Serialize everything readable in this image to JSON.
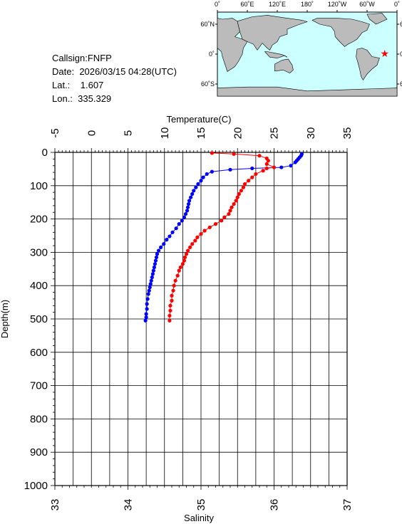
{
  "info": {
    "callsign_label": "Callsign:",
    "callsign": "FNFP",
    "date_label": "Date:",
    "date": "2026/03/15 04:28(UTC)",
    "lat_label": "Lat.:",
    "lat": "1.607",
    "lon_label": "Lon.:",
    "lon": "335.329"
  },
  "map": {
    "lon_labels": [
      "0˚",
      "60˚E",
      "120˚E",
      "180˚",
      "120˚W",
      "60˚W",
      "0˚"
    ],
    "lat_labels": [
      "60˚N",
      "0˚",
      "60˚S"
    ],
    "station": {
      "lon": 335.329,
      "lat": 1.607
    },
    "ocean_color": "#ccffff",
    "land_color": "#bbbbbb",
    "station_color": "#ff0000"
  },
  "chart_data": {
    "type": "line",
    "title": "",
    "y_axis": {
      "label": "Depth(m)",
      "range": [
        0,
        1000
      ],
      "ticks": [
        "0",
        "100",
        "200",
        "300",
        "400",
        "500",
        "600",
        "700",
        "800",
        "900",
        "1000"
      ],
      "inverted": true
    },
    "temperature_axis": {
      "label": "Temperature(C)",
      "range": [
        -5,
        35
      ],
      "ticks": [
        "-5",
        "0",
        "5",
        "10",
        "15",
        "20",
        "25",
        "30",
        "35"
      ],
      "position": "top"
    },
    "salinity_axis": {
      "label": "Salinity",
      "range": [
        33,
        37
      ],
      "ticks": [
        "33",
        "34",
        "35",
        "36",
        "37"
      ],
      "position": "bottom"
    },
    "grid": true,
    "series": [
      {
        "id": "temperature",
        "axis": "temperature",
        "color": "#0000ff",
        "points": [
          [
            28.8,
            5
          ],
          [
            28.7,
            10
          ],
          [
            28.5,
            15
          ],
          [
            28.3,
            20
          ],
          [
            28.1,
            25
          ],
          [
            27.9,
            30
          ],
          [
            27.3,
            40
          ],
          [
            26.0,
            45
          ],
          [
            22.0,
            48
          ],
          [
            19.0,
            52
          ],
          [
            16.5,
            58
          ],
          [
            15.8,
            65
          ],
          [
            15.3,
            75
          ],
          [
            15.0,
            85
          ],
          [
            14.6,
            95
          ],
          [
            14.3,
            105
          ],
          [
            14.0,
            115
          ],
          [
            13.8,
            125
          ],
          [
            13.6,
            135
          ],
          [
            13.4,
            145
          ],
          [
            13.3,
            155
          ],
          [
            13.2,
            165
          ],
          [
            13.1,
            175
          ],
          [
            12.9,
            185
          ],
          [
            12.7,
            195
          ],
          [
            12.4,
            205
          ],
          [
            12.0,
            215
          ],
          [
            11.6,
            228
          ],
          [
            11.1,
            240
          ],
          [
            10.7,
            252
          ],
          [
            10.3,
            262
          ],
          [
            9.9,
            275
          ],
          [
            9.5,
            285
          ],
          [
            9.2,
            295
          ],
          [
            9.0,
            305
          ],
          [
            8.9,
            315
          ],
          [
            8.8,
            325
          ],
          [
            8.7,
            335
          ],
          [
            8.6,
            345
          ],
          [
            8.5,
            355
          ],
          [
            8.4,
            365
          ],
          [
            8.3,
            375
          ],
          [
            8.2,
            385
          ],
          [
            8.1,
            395
          ],
          [
            8.0,
            405
          ],
          [
            7.9,
            415
          ],
          [
            7.8,
            425
          ],
          [
            7.7,
            440
          ],
          [
            7.6,
            455
          ],
          [
            7.6,
            470
          ],
          [
            7.5,
            485
          ],
          [
            7.5,
            495
          ],
          [
            7.4,
            505
          ]
        ]
      },
      {
        "id": "salinity",
        "axis": "salinity",
        "color": "#ff0000",
        "points": [
          [
            35.15,
            2
          ],
          [
            35.45,
            5
          ],
          [
            35.8,
            10
          ],
          [
            35.9,
            18
          ],
          [
            35.92,
            25
          ],
          [
            35.9,
            35
          ],
          [
            36.0,
            45
          ],
          [
            35.9,
            48
          ],
          [
            35.85,
            55
          ],
          [
            35.75,
            65
          ],
          [
            35.7,
            75
          ],
          [
            35.65,
            85
          ],
          [
            35.6,
            95
          ],
          [
            35.58,
            105
          ],
          [
            35.55,
            115
          ],
          [
            35.52,
            125
          ],
          [
            35.5,
            135
          ],
          [
            35.48,
            145
          ],
          [
            35.45,
            155
          ],
          [
            35.42,
            165
          ],
          [
            35.4,
            175
          ],
          [
            35.38,
            185
          ],
          [
            35.32,
            195
          ],
          [
            35.28,
            205
          ],
          [
            35.2,
            215
          ],
          [
            35.12,
            225
          ],
          [
            35.05,
            235
          ],
          [
            35.0,
            245
          ],
          [
            34.95,
            255
          ],
          [
            34.92,
            265
          ],
          [
            34.88,
            275
          ],
          [
            34.85,
            285
          ],
          [
            34.82,
            295
          ],
          [
            34.8,
            305
          ],
          [
            34.78,
            315
          ],
          [
            34.77,
            325
          ],
          [
            34.75,
            335
          ],
          [
            34.72,
            345
          ],
          [
            34.7,
            355
          ],
          [
            34.68,
            370
          ],
          [
            34.65,
            385
          ],
          [
            34.63,
            400
          ],
          [
            34.62,
            415
          ],
          [
            34.6,
            430
          ],
          [
            34.6,
            445
          ],
          [
            34.58,
            460
          ],
          [
            34.58,
            475
          ],
          [
            34.57,
            490
          ],
          [
            34.57,
            505
          ]
        ]
      }
    ]
  }
}
